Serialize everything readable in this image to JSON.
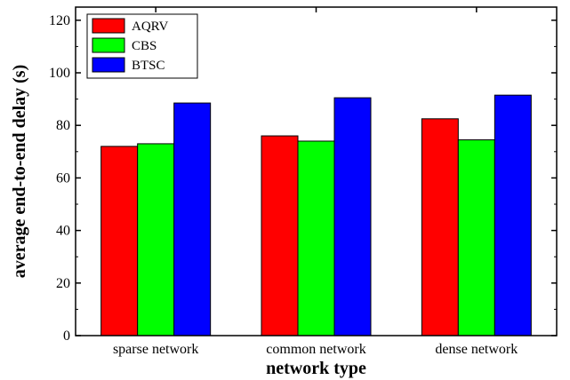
{
  "chart_data": {
    "type": "bar",
    "categories": [
      "sparse network",
      "common network",
      "dense network"
    ],
    "series": [
      {
        "name": "AQRV",
        "values": [
          72,
          76,
          82.5
        ],
        "color": "#ff0000"
      },
      {
        "name": "CBS",
        "values": [
          73,
          74,
          74.5
        ],
        "color": "#00ff00"
      },
      {
        "name": "BTSC",
        "values": [
          88.5,
          90.5,
          91.5
        ],
        "color": "#0000ff"
      }
    ],
    "xlabel": "network type",
    "ylabel": "average end-to-end delay (s)",
    "ylim": [
      0,
      125
    ],
    "yticks": [
      0,
      20,
      40,
      60,
      80,
      100,
      120
    ],
    "grid": false,
    "legend_position": "top-left"
  }
}
